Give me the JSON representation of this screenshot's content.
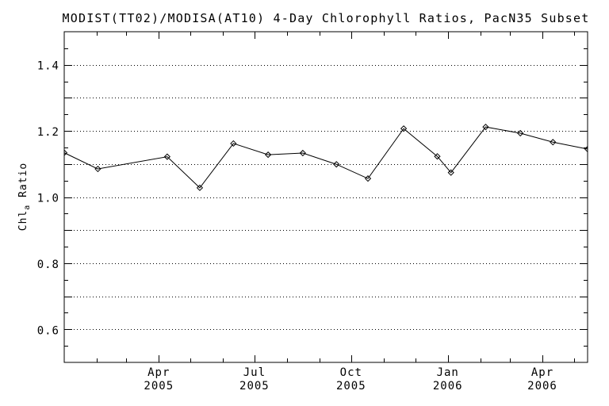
{
  "chart_data": {
    "type": "line",
    "title": "MODIST(TT02)/MODISA(AT10) 4-Day Chlorophyll Ratios, PacN35 Subset",
    "ylabel": {
      "prefix": "Chl",
      "sub": "a",
      "suffix": " Ratio"
    },
    "xlabel": "",
    "legend": "none",
    "grid": "dotted horizontal lines every 0.1",
    "marker": "diamond",
    "line_color": "#000000",
    "background": "#ffffff",
    "ylim": [
      0.5,
      1.5
    ],
    "xlim_days": [
      0,
      498
    ],
    "x_days": [
      0,
      32,
      98,
      129,
      161,
      194,
      227,
      259,
      289,
      323,
      355,
      368,
      401,
      434,
      465,
      498
    ],
    "values": [
      1.134,
      1.085,
      1.122,
      1.028,
      1.162,
      1.128,
      1.133,
      1.099,
      1.056,
      1.207,
      1.123,
      1.074,
      1.212,
      1.193,
      1.166,
      1.145
    ],
    "x_major_ticks": [
      {
        "day": 90,
        "month": "Apr",
        "year": "2005"
      },
      {
        "day": 181,
        "month": "Jul",
        "year": "2005"
      },
      {
        "day": 273,
        "month": "Oct",
        "year": "2005"
      },
      {
        "day": 365,
        "month": "Jan",
        "year": "2006"
      },
      {
        "day": 455,
        "month": "Apr",
        "year": "2006"
      }
    ],
    "x_minor_tick_days": [
      31,
      59,
      120,
      151,
      212,
      243,
      304,
      334,
      396,
      424,
      485
    ],
    "y_major_ticks": [
      {
        "value": 0.6,
        "label": "0.6"
      },
      {
        "value": 0.8,
        "label": "0.8"
      },
      {
        "value": 1.0,
        "label": "1.0"
      },
      {
        "value": 1.2,
        "label": "1.2"
      },
      {
        "value": 1.4,
        "label": "1.4"
      }
    ],
    "y_long_tick_values": [
      0.6,
      0.7,
      0.8,
      0.9,
      1.0,
      1.1,
      1.2,
      1.3,
      1.4
    ],
    "y_short_tick_values": [
      0.55,
      0.65,
      0.75,
      0.85,
      0.95,
      1.05,
      1.15,
      1.25,
      1.35,
      1.45
    ],
    "y_gridline_values": [
      0.6,
      0.7,
      0.8,
      0.9,
      1.0,
      1.1,
      1.2,
      1.3,
      1.4
    ]
  }
}
